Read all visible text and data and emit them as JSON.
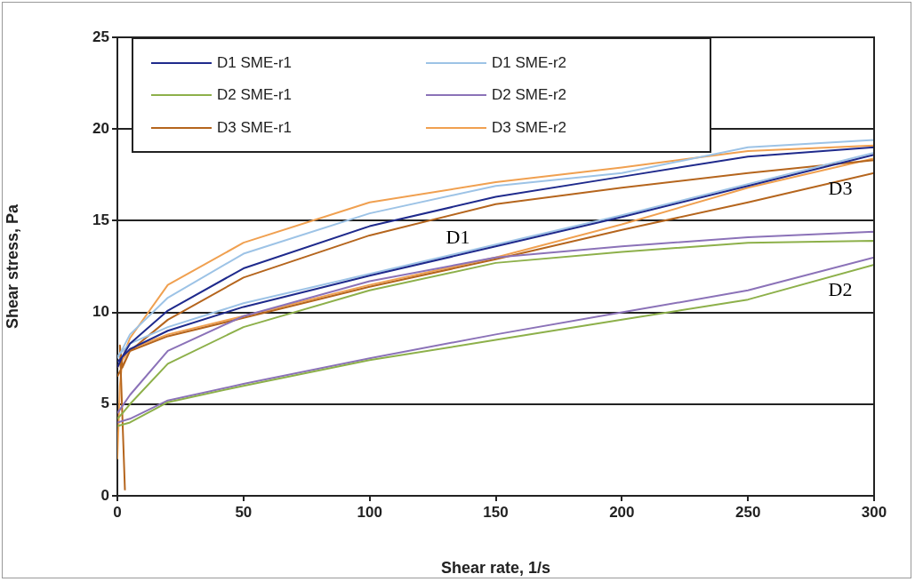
{
  "chart_data": {
    "type": "line",
    "xlabel": "Shear rate, 1/s",
    "ylabel": "Shear stress, Pa",
    "xlim": [
      0,
      300
    ],
    "xticks": [
      0,
      50,
      100,
      150,
      200,
      250,
      300
    ],
    "ylim": [
      0,
      25
    ],
    "yticks": [
      0,
      5,
      10,
      15,
      20,
      25
    ],
    "grid": "y",
    "legend": "top left",
    "marker": "none",
    "line_style": "solid",
    "series": [
      {
        "name": "D1 SME-r1",
        "color": "#1f2a8c",
        "x": [
          0,
          2,
          5,
          20,
          50,
          100,
          150,
          200,
          250,
          300,
          300,
          250,
          200,
          150,
          100,
          50,
          20,
          5,
          0
        ],
        "values": [
          7.0,
          7.6,
          8.3,
          10.1,
          12.4,
          14.7,
          16.3,
          17.4,
          18.5,
          19.0,
          18.6,
          16.9,
          15.2,
          13.6,
          12.0,
          10.3,
          9.0,
          8.0,
          7.3
        ]
      },
      {
        "name": "D1 SME-r2",
        "color": "#9dc3e6",
        "x": [
          0,
          2,
          5,
          20,
          50,
          100,
          150,
          200,
          250,
          300,
          300,
          250,
          200,
          150,
          100,
          50,
          20,
          5,
          0
        ],
        "values": [
          7.5,
          8.0,
          8.8,
          10.8,
          13.2,
          15.4,
          16.9,
          17.6,
          19.0,
          19.4,
          18.7,
          17.0,
          15.3,
          13.7,
          12.1,
          10.5,
          9.2,
          8.3,
          7.6
        ]
      },
      {
        "name": "D2 SME-r1",
        "color": "#8db04a",
        "x": [
          0,
          2,
          5,
          20,
          50,
          100,
          150,
          200,
          250,
          300,
          300,
          250,
          200,
          150,
          100,
          50,
          20,
          5,
          0
        ],
        "values": [
          4.2,
          4.5,
          5.0,
          7.2,
          9.2,
          11.2,
          12.7,
          13.3,
          13.8,
          13.9,
          12.6,
          10.7,
          9.6,
          8.5,
          7.4,
          6.0,
          5.1,
          4.0,
          3.8
        ]
      },
      {
        "name": "D2 SME-r2",
        "color": "#8b72b8",
        "x": [
          0,
          2,
          5,
          20,
          50,
          100,
          150,
          200,
          250,
          300,
          300,
          250,
          200,
          150,
          100,
          50,
          20,
          5,
          0
        ],
        "values": [
          4.5,
          4.9,
          5.5,
          7.9,
          9.8,
          11.7,
          13.0,
          13.6,
          14.1,
          14.4,
          13.0,
          11.2,
          10.0,
          8.8,
          7.5,
          6.1,
          5.2,
          4.2,
          4.0
        ]
      },
      {
        "name": "D3 SME-r1",
        "color": "#b5651d",
        "x": [
          3,
          1,
          2,
          5,
          20,
          50,
          100,
          150,
          200,
          250,
          300,
          300,
          250,
          200,
          150,
          100,
          50,
          20,
          5,
          0
        ],
        "values": [
          0.3,
          8.2,
          7.0,
          7.9,
          9.6,
          11.9,
          14.2,
          15.9,
          16.8,
          17.6,
          18.3,
          17.6,
          16.0,
          14.5,
          12.9,
          11.4,
          9.7,
          8.7,
          7.9,
          6.5
        ]
      },
      {
        "name": "D3 SME-r2",
        "color": "#f0a050",
        "x": [
          0,
          1,
          2,
          5,
          20,
          50,
          100,
          150,
          200,
          250,
          300,
          300,
          250,
          200,
          150,
          100,
          50,
          20,
          5,
          0
        ],
        "values": [
          2.0,
          6.0,
          7.5,
          8.6,
          11.5,
          13.8,
          16.0,
          17.1,
          17.9,
          18.8,
          19.1,
          18.4,
          16.8,
          14.8,
          13.0,
          11.5,
          9.8,
          8.8,
          8.0,
          7.0
        ]
      }
    ],
    "annotations": [
      "D1",
      "D3",
      "D2"
    ]
  }
}
